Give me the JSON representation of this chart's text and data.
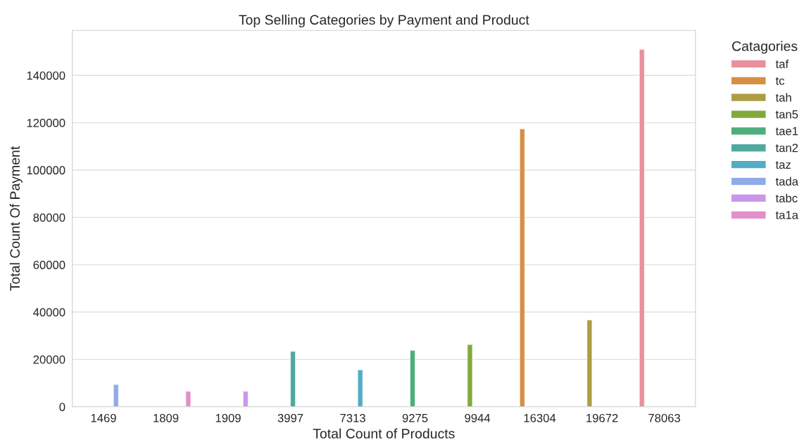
{
  "chart_data": {
    "type": "bar",
    "title": "Top Selling Categories by Payment and Product",
    "xlabel": "Total Count of Products",
    "ylabel": "Total Count Of Payment",
    "legend_title": "Catagories",
    "categories": [
      "1469",
      "1809",
      "1909",
      "3997",
      "7313",
      "9275",
      "9944",
      "16304",
      "19672",
      "78063"
    ],
    "series": [
      {
        "name": "taf",
        "color": "#e8909c",
        "values": [
          null,
          null,
          null,
          null,
          null,
          null,
          null,
          null,
          null,
          151000
        ]
      },
      {
        "name": "tc",
        "color": "#d68f44",
        "values": [
          null,
          null,
          null,
          null,
          null,
          null,
          null,
          117400,
          null,
          null
        ]
      },
      {
        "name": "tah",
        "color": "#ad9d42",
        "values": [
          null,
          null,
          null,
          null,
          null,
          null,
          null,
          null,
          36700,
          null
        ]
      },
      {
        "name": "tan5",
        "color": "#83a93c",
        "values": [
          null,
          null,
          null,
          null,
          null,
          null,
          26300,
          null,
          null,
          null
        ]
      },
      {
        "name": "tae1",
        "color": "#4eae7b",
        "values": [
          null,
          null,
          null,
          null,
          null,
          23800,
          null,
          null,
          null,
          null
        ]
      },
      {
        "name": "tan2",
        "color": "#4fa99f",
        "values": [
          null,
          null,
          null,
          23400,
          null,
          null,
          null,
          null,
          null,
          null
        ]
      },
      {
        "name": "taz",
        "color": "#52acc4",
        "values": [
          null,
          null,
          null,
          null,
          15600,
          null,
          null,
          null,
          null,
          null
        ]
      },
      {
        "name": "tada",
        "color": "#8fabe7",
        "values": [
          9400,
          null,
          null,
          null,
          null,
          null,
          null,
          null,
          null,
          null
        ]
      },
      {
        "name": "tabc",
        "color": "#c897ea",
        "values": [
          null,
          null,
          6500,
          null,
          null,
          null,
          null,
          null,
          null,
          null
        ]
      },
      {
        "name": "ta1a",
        "color": "#e38fcc",
        "values": [
          null,
          6500,
          null,
          null,
          null,
          null,
          null,
          null,
          null,
          null
        ]
      }
    ],
    "ylim": [
      0,
      159000
    ],
    "yticks": [
      0,
      20000,
      40000,
      60000,
      80000,
      100000,
      120000,
      140000
    ],
    "grid": "y",
    "legend": "right"
  }
}
